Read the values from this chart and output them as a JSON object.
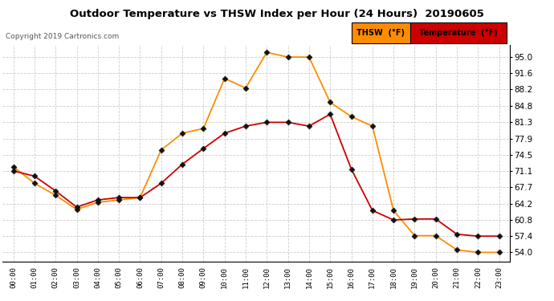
{
  "title": "Outdoor Temperature vs THSW Index per Hour (24 Hours)  20190605",
  "copyright": "Copyright 2019 Cartronics.com",
  "hours": [
    "00:00",
    "01:00",
    "02:00",
    "03:00",
    "04:00",
    "05:00",
    "06:00",
    "07:00",
    "08:00",
    "09:00",
    "10:00",
    "11:00",
    "12:00",
    "13:00",
    "14:00",
    "15:00",
    "16:00",
    "17:00",
    "18:00",
    "19:00",
    "20:00",
    "21:00",
    "22:00",
    "23:00"
  ],
  "temperature": [
    71.1,
    70.0,
    66.9,
    63.5,
    65.0,
    65.5,
    65.5,
    68.5,
    72.5,
    75.8,
    79.0,
    80.5,
    81.3,
    81.3,
    80.5,
    83.0,
    71.5,
    62.8,
    60.8,
    61.0,
    61.0,
    57.8,
    57.4,
    57.4
  ],
  "thsw": [
    72.0,
    68.5,
    66.0,
    63.0,
    64.5,
    65.0,
    65.5,
    75.5,
    79.0,
    80.0,
    90.5,
    88.5,
    96.0,
    95.0,
    95.0,
    85.5,
    82.5,
    80.5,
    62.8,
    57.5,
    57.5,
    54.5,
    54.0,
    54.0
  ],
  "temp_color": "#cc0000",
  "thsw_color": "#ff8c00",
  "markersize": 3.5,
  "markercolor": "#111111",
  "ylim_min": 52.0,
  "ylim_max": 97.5,
  "yticks": [
    54.0,
    57.4,
    60.8,
    64.2,
    67.7,
    71.1,
    74.5,
    77.9,
    81.3,
    84.8,
    88.2,
    91.6,
    95.0
  ],
  "grid_color": "#cccccc",
  "bg_color": "#ffffff",
  "legend_thsw_bg": "#ff8c00",
  "legend_temp_bg": "#cc0000",
  "legend_thsw_label": "THSW  (°F)",
  "legend_temp_label": "Temperature  (°F)"
}
